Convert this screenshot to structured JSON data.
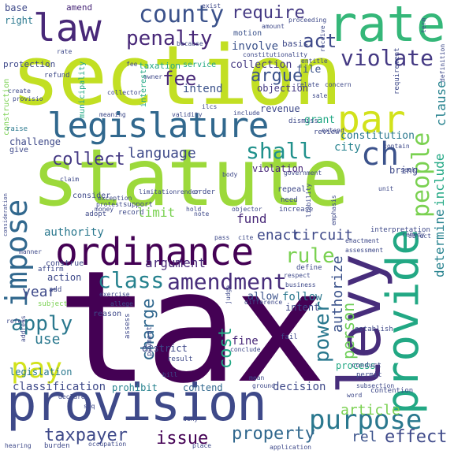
{
  "words": [
    {
      "text": "tax",
      "color": "#440154"
    },
    {
      "text": "section",
      "color": "#c2df23"
    },
    {
      "text": "statute",
      "color": "#9cd93b"
    },
    {
      "text": "provision",
      "color": "#3e4989"
    },
    {
      "text": "legislature",
      "color": "#31688e"
    },
    {
      "text": "ordinance",
      "color": "#440154"
    },
    {
      "text": "levy",
      "color": "#472d7b"
    },
    {
      "text": "provide",
      "color": "#22a884"
    },
    {
      "text": "rate",
      "color": "#35b779"
    },
    {
      "text": "law",
      "color": "#482878"
    },
    {
      "text": "impose",
      "color": "#31688e"
    },
    {
      "text": "par",
      "color": "#d2e21b"
    },
    {
      "text": "purpose",
      "color": "#2a788e"
    },
    {
      "text": "county",
      "color": "#3b528b"
    },
    {
      "text": "amendment",
      "color": "#472d7b"
    },
    {
      "text": "class",
      "color": "#26828e"
    },
    {
      "text": "ch",
      "color": "#3b528b"
    },
    {
      "text": "shall",
      "color": "#21918c"
    },
    {
      "text": "pay",
      "color": "#d2e21b"
    },
    {
      "text": "penalty",
      "color": "#482878"
    },
    {
      "text": "require",
      "color": "#443983"
    },
    {
      "text": "violate",
      "color": "#443983"
    },
    {
      "text": "people",
      "color": "#7ad151"
    },
    {
      "text": "rule",
      "color": "#7ad151"
    },
    {
      "text": "power",
      "color": "#2a788e"
    },
    {
      "text": "fee",
      "color": "#482878"
    },
    {
      "text": "act",
      "color": "#3e4989"
    },
    {
      "text": "argue",
      "color": "#3b528b"
    },
    {
      "text": "collect",
      "color": "#443983"
    },
    {
      "text": "language",
      "color": "#3e4989"
    },
    {
      "text": "apply",
      "color": "#2a788e"
    },
    {
      "text": "issue",
      "color": "#440154"
    },
    {
      "text": "property",
      "color": "#31688e"
    },
    {
      "text": "taxpayer",
      "color": "#3e4989"
    },
    {
      "text": "charge",
      "color": "#31688e"
    },
    {
      "text": "cost",
      "color": "#22a884"
    },
    {
      "text": "person",
      "color": "#6ece58"
    },
    {
      "text": "authority",
      "color": "#2a788e"
    },
    {
      "text": "circuit",
      "color": "#3e4989"
    },
    {
      "text": "authorize",
      "color": "#3b528b"
    },
    {
      "text": "determine",
      "color": "#26828e"
    },
    {
      "text": "include",
      "color": "#22a884"
    },
    {
      "text": "clause",
      "color": "#26828e"
    },
    {
      "text": "effect",
      "color": "#3e4989"
    },
    {
      "text": "rel",
      "color": "#3b528b"
    },
    {
      "text": "article",
      "color": "#7ad151"
    },
    {
      "text": "enact",
      "color": "#3e4989"
    },
    {
      "text": "year",
      "color": "#3e4989"
    },
    {
      "text": "use",
      "color": "#2a788e"
    },
    {
      "text": "argument",
      "color": "#482878"
    },
    {
      "text": "classification",
      "color": "#3e4989"
    },
    {
      "text": "intend",
      "color": "#3b528b"
    },
    {
      "text": "limit",
      "color": "#7ad151"
    },
    {
      "text": "fund",
      "color": "#482878"
    },
    {
      "text": "involve",
      "color": "#3b528b"
    },
    {
      "text": "constitution",
      "color": "#2a788e"
    },
    {
      "text": "collection",
      "color": "#443983"
    },
    {
      "text": "decision",
      "color": "#3e4989"
    },
    {
      "text": "follow",
      "color": "#2a788e"
    },
    {
      "text": "allow",
      "color": "#3b528b"
    },
    {
      "text": "city",
      "color": "#26828e"
    },
    {
      "text": "bring",
      "color": "#3e4989"
    },
    {
      "text": "file",
      "color": "#3b528b"
    },
    {
      "text": "grant",
      "color": "#22a884"
    },
    {
      "text": "fine",
      "color": "#482878"
    },
    {
      "text": "prohibit",
      "color": "#26828e"
    },
    {
      "text": "process",
      "color": "#22a884"
    },
    {
      "text": "legislation",
      "color": "#2a788e"
    },
    {
      "text": "action",
      "color": "#3e4989"
    },
    {
      "text": "challenge",
      "color": "#3e4989"
    },
    {
      "text": "contend",
      "color": "#31688e"
    },
    {
      "text": "intent",
      "color": "#3e4989"
    },
    {
      "text": "objection",
      "color": "#443983"
    },
    {
      "text": "revenue",
      "color": "#3e4989"
    },
    {
      "text": "violation",
      "color": "#482878"
    },
    {
      "text": "district",
      "color": "#3e4989"
    },
    {
      "text": "protection",
      "color": "#3e4989"
    },
    {
      "text": "taxation",
      "color": "#22a884"
    },
    {
      "text": "motion",
      "color": "#3b528b"
    },
    {
      "text": "amend",
      "color": "#482878"
    },
    {
      "text": "base",
      "color": "#3e4989"
    },
    {
      "text": "right",
      "color": "#2a788e"
    },
    {
      "text": "service",
      "color": "#22a884"
    },
    {
      "text": "basis",
      "color": "#3e4989"
    },
    {
      "text": "municipality",
      "color": "#22a884"
    },
    {
      "text": "interest",
      "color": "#22a884"
    },
    {
      "text": "construction",
      "color": "#7ad151"
    },
    {
      "text": "give",
      "color": "#3e4989"
    },
    {
      "text": "raise",
      "color": "#2a788e"
    },
    {
      "text": "consider",
      "color": "#3e4989"
    },
    {
      "text": "assess",
      "color": "#3e4989"
    },
    {
      "text": "payment",
      "color": "#3e4989"
    },
    {
      "text": "construe",
      "color": "#3e4989"
    },
    {
      "text": "subject",
      "color": "#7ad151"
    },
    {
      "text": "add",
      "color": "#3e4989"
    },
    {
      "text": "reason",
      "color": "#3e4989"
    },
    {
      "text": "define",
      "color": "#3e4989"
    },
    {
      "text": "repeal",
      "color": "#3e4989"
    },
    {
      "text": "need",
      "color": "#3e4989"
    },
    {
      "text": "increase",
      "color": "#3e4989"
    },
    {
      "text": "result",
      "color": "#3e4989"
    },
    {
      "text": "burden",
      "color": "#3e4989"
    },
    {
      "text": "refund",
      "color": "#3e4989"
    },
    {
      "text": "fail",
      "color": "#3e4989"
    },
    {
      "text": "order",
      "color": "#3e4989"
    },
    {
      "text": "support",
      "color": "#3e4989"
    },
    {
      "text": "record",
      "color": "#3e4989"
    },
    {
      "text": "adopt",
      "color": "#3e4989"
    },
    {
      "text": "affirm",
      "color": "#3e4989"
    },
    {
      "text": "establish",
      "color": "#3e4989"
    },
    {
      "text": "conduct",
      "color": "#3e4989"
    },
    {
      "text": "permit",
      "color": "#3e4989"
    },
    {
      "text": "interpretation",
      "color": "#3e4989"
    },
    {
      "text": "contention",
      "color": "#3e4989"
    },
    {
      "text": "amount",
      "color": "#3e4989"
    },
    {
      "text": "proceeding",
      "color": "#3e4989"
    },
    {
      "text": "constitutionality",
      "color": "#3e4989"
    },
    {
      "text": "requirement",
      "color": "#3e4989"
    },
    {
      "text": "definition",
      "color": "#3e4989"
    },
    {
      "text": "term",
      "color": "#3e4989"
    },
    {
      "text": "dismiss",
      "color": "#3e4989"
    },
    {
      "text": "review",
      "color": "#3e4989"
    },
    {
      "text": "body",
      "color": "#3e4989"
    },
    {
      "text": "claim",
      "color": "#3e4989"
    },
    {
      "text": "limitation",
      "color": "#3e4989"
    },
    {
      "text": "render",
      "color": "#3e4989"
    },
    {
      "text": "protest",
      "color": "#3e4989"
    },
    {
      "text": "exception",
      "color": "#3e4989"
    },
    {
      "text": "money",
      "color": "#3e4989"
    },
    {
      "text": "hold",
      "color": "#3e4989"
    },
    {
      "text": "objector",
      "color": "#3e4989"
    },
    {
      "text": "government",
      "color": "#3e4989"
    },
    {
      "text": "relate",
      "color": "#3e4989"
    },
    {
      "text": "concern",
      "color": "#3e4989"
    },
    {
      "text": "extend",
      "color": "#3e4989"
    },
    {
      "text": "sale",
      "color": "#3e4989"
    },
    {
      "text": "include",
      "color": "#3e4989"
    },
    {
      "text": "meaning",
      "color": "#3e4989"
    },
    {
      "text": "validity",
      "color": "#3e4989"
    },
    {
      "text": "collector",
      "color": "#3e4989"
    },
    {
      "text": "owner",
      "color": "#3e4989"
    },
    {
      "text": "because",
      "color": "#3e4989"
    },
    {
      "text": "exist",
      "color": "#3e4989"
    },
    {
      "text": "create",
      "color": "#3e4989"
    },
    {
      "text": "entitle",
      "color": "#3e4989"
    },
    {
      "text": "receive",
      "color": "#3e4989"
    },
    {
      "text": "note",
      "color": "#3e4989"
    },
    {
      "text": "rate",
      "color": "#3e4989"
    },
    {
      "text": "fee",
      "color": "#3e4989"
    },
    {
      "text": "remedy",
      "color": "#3e4989"
    },
    {
      "text": "respect",
      "color": "#3e4989"
    },
    {
      "text": "enactment",
      "color": "#3e4989"
    },
    {
      "text": "assessment",
      "color": "#3e4989"
    },
    {
      "text": "object",
      "color": "#3e4989"
    },
    {
      "text": "business",
      "color": "#3e4989"
    },
    {
      "text": "difference",
      "color": "#3e4989"
    },
    {
      "text": "exercise",
      "color": "#3e4989"
    },
    {
      "text": "allege",
      "color": "#3e4989"
    },
    {
      "text": "address",
      "color": "#3e4989"
    },
    {
      "text": "refer",
      "color": "#3e4989"
    },
    {
      "text": "conclude",
      "color": "#3e4989"
    },
    {
      "text": "bill",
      "color": "#3e4989"
    },
    {
      "text": "mean",
      "color": "#3e4989"
    },
    {
      "text": "ground",
      "color": "#3e4989"
    },
    {
      "text": "declare",
      "color": "#3e4989"
    },
    {
      "text": "seq",
      "color": "#3e4989"
    },
    {
      "text": "deny",
      "color": "#3e4989"
    },
    {
      "text": "place",
      "color": "#3e4989"
    },
    {
      "text": "occupation",
      "color": "#3e4989"
    },
    {
      "text": "application",
      "color": "#3e4989"
    },
    {
      "text": "hearing",
      "color": "#3e4989"
    },
    {
      "text": "word",
      "color": "#3e4989"
    },
    {
      "text": "subsection",
      "color": "#3e4989"
    },
    {
      "text": "emphasis",
      "color": "#3e4989"
    },
    {
      "text": "liability",
      "color": "#3e4989"
    },
    {
      "text": "unit",
      "color": "#3e4989"
    },
    {
      "text": "seek",
      "color": "#3e4989"
    },
    {
      "text": "contain",
      "color": "#3e4989"
    },
    {
      "text": "ilcs",
      "color": "#3e4989"
    },
    {
      "text": "pass",
      "color": "#3e4989"
    },
    {
      "text": "cite",
      "color": "#3e4989"
    },
    {
      "text": "judge",
      "color": "#3e4989"
    },
    {
      "text": "consideration",
      "color": "#3e4989"
    },
    {
      "text": "manner",
      "color": "#3e4989"
    },
    {
      "text": "provisio",
      "color": "#3e4989"
    }
  ]
}
